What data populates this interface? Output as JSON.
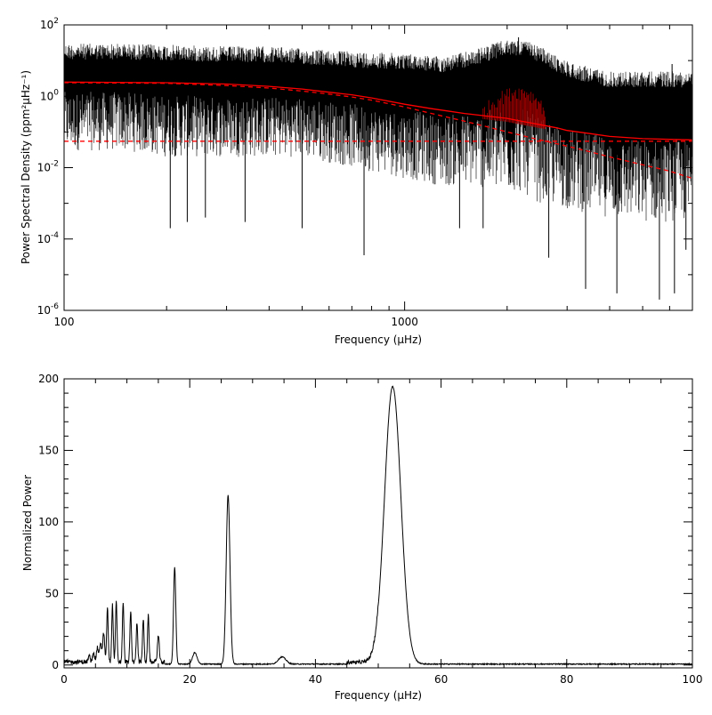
{
  "chart_data": [
    {
      "type": "line",
      "xlabel": "Frequency (μHz)",
      "ylabel": "Power Spectral Density (ppm²μHz⁻¹)",
      "xscale": "log",
      "yscale": "log",
      "xlim": [
        100,
        7000
      ],
      "ylim": [
        1e-06,
        100
      ],
      "x_ticks": [
        {
          "value": 100,
          "label": "100"
        },
        {
          "value": 1000,
          "label": "1000"
        }
      ],
      "y_ticks": [
        {
          "value": 1e-06,
          "base": "10",
          "exp": "-6"
        },
        {
          "value": 0.0001,
          "base": "10",
          "exp": "-4"
        },
        {
          "value": 0.01,
          "base": "10",
          "exp": "-2"
        },
        {
          "value": 1,
          "base": "10",
          "exp": "0"
        },
        {
          "value": 100,
          "base": "10",
          "exp": "2"
        }
      ],
      "grid": false,
      "legend": "none",
      "series": [
        {
          "color": "#000000",
          "style": "spectrum",
          "envelope_x": [
            100,
            150,
            200,
            300,
            400,
            500,
            700,
            1000,
            1300,
            1600,
            1900,
            2200,
            2500,
            2800,
            3200,
            4000,
            5000,
            6000,
            7000
          ],
          "envelope_upper": [
            30,
            30,
            28,
            25,
            25,
            22,
            18,
            16,
            13,
            20,
            35,
            40,
            25,
            13,
            8,
            5,
            5,
            5,
            5
          ],
          "envelope_lower": [
            0.03,
            0.03,
            0.02,
            0.02,
            0.02,
            0.02,
            0.01,
            0.005,
            0.003,
            0.003,
            0.002,
            0.002,
            0.001,
            0.0008,
            0.0006,
            0.0004,
            0.0003,
            0.0003,
            0.0003
          ],
          "median": [
            2.5,
            2.5,
            2.4,
            2.2,
            2.0,
            1.7,
            1.2,
            0.6,
            0.35,
            0.35,
            0.6,
            0.8,
            0.35,
            0.17,
            0.11,
            0.08,
            0.07,
            0.07,
            0.07
          ],
          "spikes": [
            {
              "x": 230,
              "y": 0.0003
            },
            {
              "x": 260,
              "y": 0.0004
            },
            {
              "x": 340,
              "y": 0.0003
            },
            {
              "x": 760,
              "y": 3.5e-05
            },
            {
              "x": 1450,
              "y": 0.0002
            },
            {
              "x": 1700,
              "y": 0.0002
            },
            {
              "x": 2650,
              "y": 3e-05
            },
            {
              "x": 3400,
              "y": 4e-06
            },
            {
              "x": 4200,
              "y": 3e-06
            },
            {
              "x": 5600,
              "y": 2e-06
            },
            {
              "x": 6200,
              "y": 3e-06
            },
            {
              "x": 6700,
              "y": 5e-05
            },
            {
              "x": 205,
              "y": 0.0002
            },
            {
              "x": 500,
              "y": 0.0002
            }
          ],
          "peaks": [
            {
              "x": 1900,
              "y": 20
            },
            {
              "x": 2000,
              "y": 25
            },
            {
              "x": 2100,
              "y": 30
            },
            {
              "x": 2160,
              "y": 45
            },
            {
              "x": 2230,
              "y": 30
            },
            {
              "x": 2300,
              "y": 20
            },
            {
              "x": 2400,
              "y": 12
            },
            {
              "x": 6100,
              "y": 8
            }
          ]
        },
        {
          "color": "#ff0000",
          "style": "solid",
          "x": [
            100,
            200,
            300,
            400,
            500,
            600,
            700,
            800,
            1000,
            1200,
            1500,
            1800,
            2000,
            2200,
            2500,
            2800,
            3000,
            3500,
            4000,
            5000,
            6000,
            7000
          ],
          "y": [
            2.5,
            2.4,
            2.2,
            1.9,
            1.6,
            1.3,
            1.1,
            0.9,
            0.6,
            0.45,
            0.33,
            0.27,
            0.24,
            0.2,
            0.16,
            0.13,
            0.11,
            0.09,
            0.075,
            0.065,
            0.062,
            0.06
          ]
        },
        {
          "color": "#ff0000",
          "style": "dashed",
          "x": [
            100,
            200,
            300,
            400,
            500,
            600,
            700,
            800,
            1000,
            1200,
            1500,
            1800,
            2000,
            2500,
            3000,
            3500,
            4000,
            5000,
            6000,
            7000
          ],
          "y": [
            2.4,
            2.3,
            2.0,
            1.7,
            1.4,
            1.15,
            0.95,
            0.78,
            0.5,
            0.33,
            0.2,
            0.13,
            0.1,
            0.06,
            0.04,
            0.028,
            0.02,
            0.012,
            0.008,
            0.005
          ]
        },
        {
          "color": "#ff0000",
          "style": "dashed",
          "x": [
            100,
            7000
          ],
          "y": [
            0.055,
            0.055
          ]
        },
        {
          "color": "#a00000",
          "style": "modes",
          "x": [
            1700,
            1800,
            1900,
            2000,
            2100,
            2200,
            2300,
            2400,
            2500,
            2600
          ],
          "y": [
            0.4,
            0.6,
            0.9,
            1.1,
            1.3,
            1.3,
            1.2,
            0.9,
            0.6,
            0.35
          ]
        }
      ]
    },
    {
      "type": "line",
      "xlabel": "Frequency (μHz)",
      "ylabel": "Normalized Power",
      "xlim": [
        0,
        100
      ],
      "ylim": [
        -2,
        200
      ],
      "x_ticks": [
        0,
        20,
        40,
        60,
        80,
        100
      ],
      "y_ticks": [
        0,
        50,
        100,
        150,
        200
      ],
      "grid": false,
      "legend": "none",
      "series": [
        {
          "color": "#000000",
          "baseline": 1,
          "peaks": [
            {
              "x": 4.0,
              "h": 4,
              "w": 0.15
            },
            {
              "x": 4.7,
              "h": 7,
              "w": 0.15
            },
            {
              "x": 5.3,
              "h": 10,
              "w": 0.15
            },
            {
              "x": 5.8,
              "h": 14,
              "w": 0.15
            },
            {
              "x": 6.3,
              "h": 20,
              "w": 0.15
            },
            {
              "x": 6.9,
              "h": 38,
              "w": 0.12
            },
            {
              "x": 7.7,
              "h": 40,
              "w": 0.12
            },
            {
              "x": 8.3,
              "h": 42,
              "w": 0.12
            },
            {
              "x": 9.4,
              "h": 42,
              "w": 0.12
            },
            {
              "x": 10.6,
              "h": 35,
              "w": 0.12
            },
            {
              "x": 11.6,
              "h": 28,
              "w": 0.12
            },
            {
              "x": 12.6,
              "h": 30,
              "w": 0.12
            },
            {
              "x": 13.4,
              "h": 32,
              "w": 0.12
            },
            {
              "x": 15.0,
              "h": 18,
              "w": 0.15
            },
            {
              "x": 17.6,
              "h": 68,
              "w": 0.18
            },
            {
              "x": 20.8,
              "h": 8,
              "w": 0.35
            },
            {
              "x": 26.1,
              "h": 118,
              "w": 0.3
            },
            {
              "x": 34.7,
              "h": 5,
              "w": 0.6
            },
            {
              "x": 52.3,
              "h": 194,
              "w": 1.3
            }
          ]
        }
      ]
    }
  ]
}
